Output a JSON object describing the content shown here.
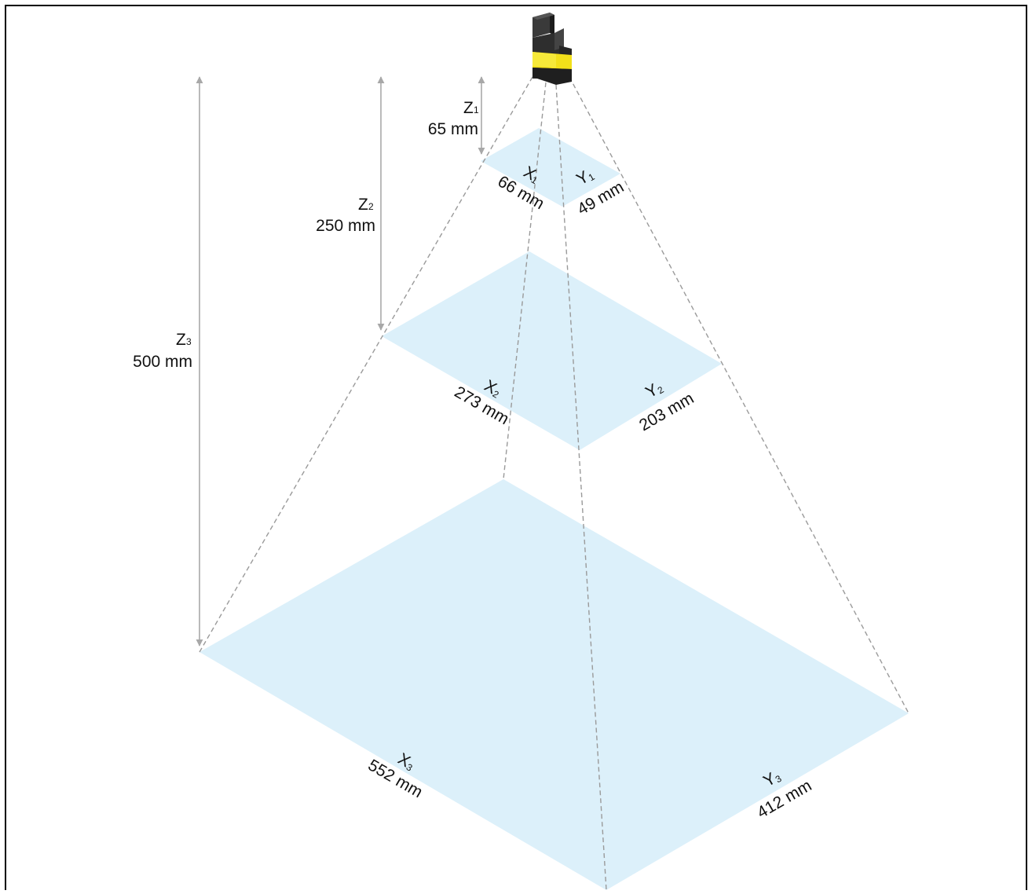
{
  "colors": {
    "plane_fill": "#dcf0fa",
    "ray_dash": "#9a9a9a",
    "dimension_arrow": "#a8a8a8",
    "sensor_dark": "#2b2b2b",
    "sensor_yellow": "#f2e01a",
    "border": "#000000"
  },
  "icons": {
    "device": "camera-sensor-icon"
  },
  "labels": {
    "z1": {
      "letter": "Z",
      "sub": "1",
      "value": "65 mm"
    },
    "z2": {
      "letter": "Z",
      "sub": "2",
      "value": "250 mm"
    },
    "z3": {
      "letter": "Z",
      "sub": "3",
      "value": "500 mm"
    },
    "x1": {
      "letter": "X",
      "sub": "1",
      "value": "66 mm"
    },
    "y1": {
      "letter": "Y",
      "sub": "1",
      "value": "49 mm"
    },
    "x2": {
      "letter": "X",
      "sub": "2",
      "value": "273 mm"
    },
    "y2": {
      "letter": "Y",
      "sub": "2",
      "value": "203 mm"
    },
    "x3": {
      "letter": "X",
      "sub": "3",
      "value": "552 mm"
    },
    "y3": {
      "letter": "Y",
      "sub": "3",
      "value": "412 mm"
    }
  }
}
